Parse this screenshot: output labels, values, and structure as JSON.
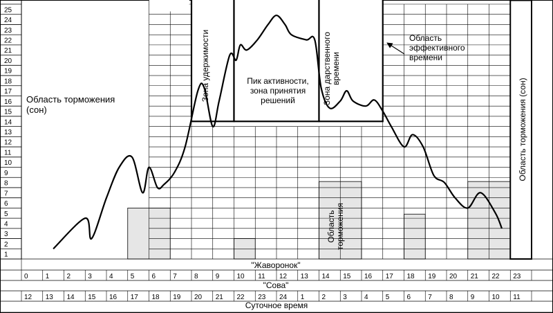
{
  "y_axis_ticks": [
    "1",
    "2",
    "3",
    "4",
    "5",
    "6",
    "7",
    "8",
    "9",
    "10",
    "11",
    "12",
    "13",
    "14",
    "15",
    "16",
    "17",
    "18",
    "19",
    "20",
    "21",
    "22",
    "23",
    "24",
    "25"
  ],
  "lark_row": {
    "title": "\"Жаворонок\"",
    "hours": [
      "0",
      "1",
      "2",
      "3",
      "4",
      "5",
      "6",
      "7",
      "8",
      "9",
      "10",
      "11",
      "12",
      "13",
      "14",
      "15",
      "16",
      "17",
      "18",
      "19",
      "20",
      "21",
      "22",
      "23"
    ]
  },
  "owl_row": {
    "title": "\"Сова\"",
    "hours": [
      "12",
      "13",
      "14",
      "15",
      "16",
      "17",
      "18",
      "19",
      "20",
      "21",
      "22",
      "23",
      "24",
      "1",
      "2",
      "3",
      "4",
      "5",
      "6",
      "7",
      "8",
      "9",
      "10",
      "11"
    ]
  },
  "footer_title": "Суточное время",
  "labels": {
    "inhibition_left": "Область торможения\n(сон)",
    "retention_zone": "Зона удержимости",
    "peak": "Пик активности,\nзона принятия\nрешений",
    "gift_zone": "Зона дарственного\nвремени",
    "effective_area": "Область\nэффективного\nвремени",
    "inhibition_mid": "Область\nторможения",
    "inhibition_right": "Область  торможения (сон)"
  },
  "activity_curve": {
    "x_hours": [
      1.5,
      3.0,
      3.3,
      4.0,
      4.6,
      5.2,
      5.7,
      6.0,
      6.4,
      6.7,
      7.2,
      7.7,
      8.3,
      8.6,
      9.0,
      9.3,
      9.8,
      10.1,
      10.3,
      10.6,
      11.1,
      11.6,
      12.0,
      12.4,
      12.7,
      13.4,
      13.8,
      14.1,
      14.5,
      15.0,
      15.3,
      15.6,
      16.2,
      16.6,
      17.0,
      17.4,
      18.0,
      18.4,
      18.9,
      19.4,
      19.9,
      20.4,
      21.0,
      21.6,
      22.3,
      22.6
    ],
    "y_levels": [
      1.0,
      4.0,
      2.0,
      6.0,
      9.0,
      10.0,
      6.5,
      9.0,
      7.0,
      7.3,
      8.5,
      11.0,
      16.5,
      16.8,
      13.0,
      15.5,
      20.0,
      19.5,
      21.0,
      20.5,
      21.5,
      23.0,
      23.9,
      23.0,
      22.0,
      21.5,
      21.5,
      16.8,
      14.8,
      15.5,
      16.5,
      15.5,
      15.0,
      15.6,
      14.5,
      13.0,
      11.0,
      12.2,
      11.0,
      8.2,
      7.5,
      6.0,
      5.0,
      6.5,
      4.5,
      3.0
    ]
  },
  "shaded_bars": [
    {
      "from": 5.0,
      "to": 7.0,
      "level": 5
    },
    {
      "from": 10.0,
      "to": 11.0,
      "level": 2
    },
    {
      "from": 14.0,
      "to": 16.0,
      "level": 7.6
    },
    {
      "from": 18.0,
      "to": 19.0,
      "level": 4.4
    },
    {
      "from": 21.0,
      "to": 23.0,
      "level": 7.6
    }
  ],
  "colors": {
    "shade": "#e6e6e6",
    "line": "#000000"
  }
}
